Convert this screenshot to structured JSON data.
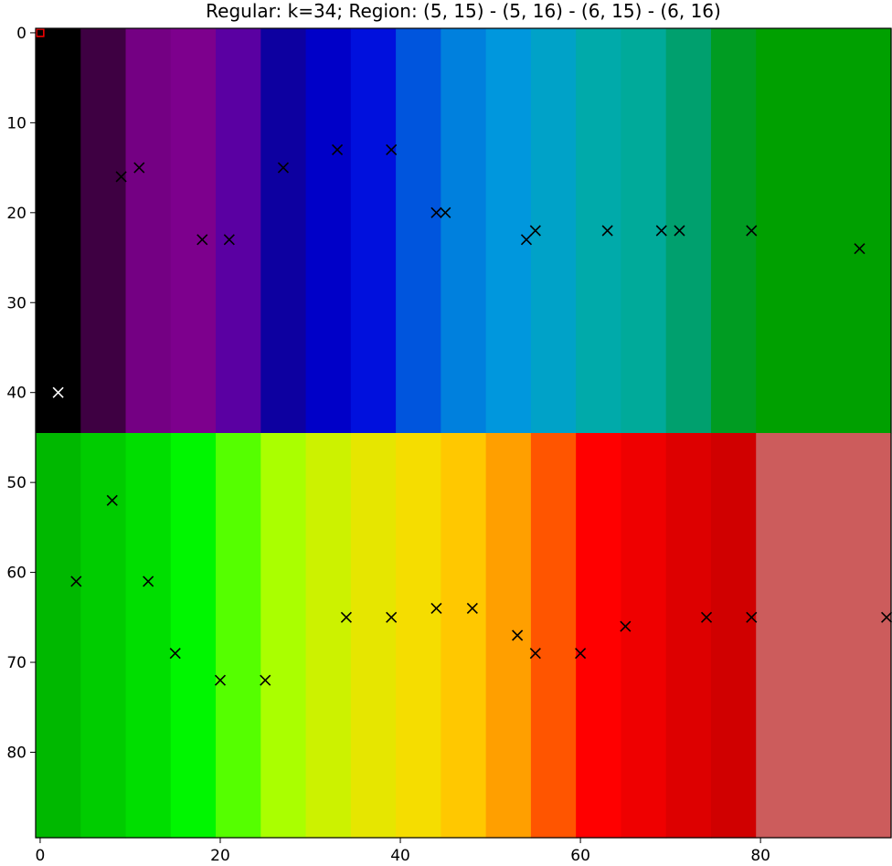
{
  "chart_data": {
    "type": "heatmap",
    "title": "Regular: k=34; Region: (5, 15) - (5, 16) - (6, 15) - (6, 16)",
    "xlim": [
      -0.5,
      94.5
    ],
    "ylim": [
      89.5,
      -0.5
    ],
    "y_inverted": true,
    "x_ticks": [
      0,
      20,
      40,
      60,
      80
    ],
    "y_ticks": [
      0,
      10,
      20,
      30,
      40,
      50,
      60,
      70,
      80
    ],
    "grid": false,
    "regions": [
      {
        "x0": -0.5,
        "x1": 4.5,
        "y0": -0.5,
        "y1": 44.5,
        "color": "#000000"
      },
      {
        "x0": 4.5,
        "x1": 9.5,
        "y0": -0.5,
        "y1": 44.5,
        "color": "#3e0042"
      },
      {
        "x0": 9.5,
        "x1": 14.5,
        "y0": -0.5,
        "y1": 44.5,
        "color": "#740083"
      },
      {
        "x0": 14.5,
        "x1": 19.5,
        "y0": -0.5,
        "y1": 44.5,
        "color": "#7d008d"
      },
      {
        "x0": 19.5,
        "x1": 24.5,
        "y0": -0.5,
        "y1": 44.5,
        "color": "#5a00a2"
      },
      {
        "x0": 24.5,
        "x1": 29.5,
        "y0": -0.5,
        "y1": 44.5,
        "color": "#0d00a0"
      },
      {
        "x0": 29.5,
        "x1": 34.5,
        "y0": -0.5,
        "y1": 44.5,
        "color": "#0000c8"
      },
      {
        "x0": 34.5,
        "x1": 39.5,
        "y0": -0.5,
        "y1": 44.5,
        "color": "#0010dd"
      },
      {
        "x0": 39.5,
        "x1": 44.5,
        "y0": -0.5,
        "y1": 44.5,
        "color": "#0055dd"
      },
      {
        "x0": 44.5,
        "x1": 49.5,
        "y0": -0.5,
        "y1": 44.5,
        "color": "#0080dd"
      },
      {
        "x0": 49.5,
        "x1": 54.5,
        "y0": -0.5,
        "y1": 44.5,
        "color": "#0097dd"
      },
      {
        "x0": 54.5,
        "x1": 59.5,
        "y0": -0.5,
        "y1": 44.5,
        "color": "#00a2c8"
      },
      {
        "x0": 59.5,
        "x1": 64.5,
        "y0": -0.5,
        "y1": 44.5,
        "color": "#00aaaa"
      },
      {
        "x0": 64.5,
        "x1": 69.5,
        "y0": -0.5,
        "y1": 44.5,
        "color": "#00aa9a"
      },
      {
        "x0": 69.5,
        "x1": 74.5,
        "y0": -0.5,
        "y1": 44.5,
        "color": "#00a06e"
      },
      {
        "x0": 74.5,
        "x1": 79.5,
        "y0": -0.5,
        "y1": 44.5,
        "color": "#009c22"
      },
      {
        "x0": 79.5,
        "x1": 94.5,
        "y0": -0.5,
        "y1": 44.5,
        "color": "#00a000"
      },
      {
        "x0": -0.5,
        "x1": 4.5,
        "y0": 44.5,
        "y1": 89.5,
        "color": "#00b800"
      },
      {
        "x0": 4.5,
        "x1": 9.5,
        "y0": 44.5,
        "y1": 89.5,
        "color": "#00cc00"
      },
      {
        "x0": 9.5,
        "x1": 14.5,
        "y0": 44.5,
        "y1": 89.5,
        "color": "#00de00"
      },
      {
        "x0": 14.5,
        "x1": 19.5,
        "y0": 44.5,
        "y1": 89.5,
        "color": "#00f600"
      },
      {
        "x0": 19.5,
        "x1": 24.5,
        "y0": 44.5,
        "y1": 89.5,
        "color": "#55ff00"
      },
      {
        "x0": 24.5,
        "x1": 29.5,
        "y0": 44.5,
        "y1": 89.5,
        "color": "#aaff00"
      },
      {
        "x0": 29.5,
        "x1": 34.5,
        "y0": 44.5,
        "y1": 89.5,
        "color": "#ccf200"
      },
      {
        "x0": 34.5,
        "x1": 39.5,
        "y0": 44.5,
        "y1": 89.5,
        "color": "#e6e600"
      },
      {
        "x0": 39.5,
        "x1": 44.5,
        "y0": 44.5,
        "y1": 89.5,
        "color": "#f5dd00"
      },
      {
        "x0": 44.5,
        "x1": 49.5,
        "y0": 44.5,
        "y1": 89.5,
        "color": "#ffc800"
      },
      {
        "x0": 49.5,
        "x1": 54.5,
        "y0": 44.5,
        "y1": 89.5,
        "color": "#ff9f00"
      },
      {
        "x0": 54.5,
        "x1": 59.5,
        "y0": 44.5,
        "y1": 89.5,
        "color": "#ff5500"
      },
      {
        "x0": 59.5,
        "x1": 64.5,
        "y0": 44.5,
        "y1": 89.5,
        "color": "#ff0000"
      },
      {
        "x0": 64.5,
        "x1": 69.5,
        "y0": 44.5,
        "y1": 89.5,
        "color": "#ef0000"
      },
      {
        "x0": 69.5,
        "x1": 74.5,
        "y0": 44.5,
        "y1": 89.5,
        "color": "#dd0000"
      },
      {
        "x0": 74.5,
        "x1": 79.5,
        "y0": 44.5,
        "y1": 89.5,
        "color": "#d00000"
      },
      {
        "x0": 79.5,
        "x1": 94.5,
        "y0": 44.5,
        "y1": 89.5,
        "color": "#cc5c5c"
      }
    ],
    "points": [
      {
        "x": 2,
        "y": 40,
        "color": "#ffffff"
      },
      {
        "x": 9,
        "y": 16,
        "color": "#000000"
      },
      {
        "x": 11,
        "y": 15,
        "color": "#000000"
      },
      {
        "x": 18,
        "y": 23,
        "color": "#000000"
      },
      {
        "x": 21,
        "y": 23,
        "color": "#000000"
      },
      {
        "x": 27,
        "y": 15,
        "color": "#000000"
      },
      {
        "x": 33,
        "y": 13,
        "color": "#000000"
      },
      {
        "x": 39,
        "y": 13,
        "color": "#000000"
      },
      {
        "x": 44,
        "y": 20,
        "color": "#000000"
      },
      {
        "x": 45,
        "y": 20,
        "color": "#000000"
      },
      {
        "x": 54,
        "y": 23,
        "color": "#000000"
      },
      {
        "x": 55,
        "y": 22,
        "color": "#000000"
      },
      {
        "x": 63,
        "y": 22,
        "color": "#000000"
      },
      {
        "x": 69,
        "y": 22,
        "color": "#000000"
      },
      {
        "x": 71,
        "y": 22,
        "color": "#000000"
      },
      {
        "x": 79,
        "y": 22,
        "color": "#000000"
      },
      {
        "x": 91,
        "y": 24,
        "color": "#000000"
      },
      {
        "x": 4,
        "y": 61,
        "color": "#000000"
      },
      {
        "x": 8,
        "y": 52,
        "color": "#000000"
      },
      {
        "x": 12,
        "y": 61,
        "color": "#000000"
      },
      {
        "x": 15,
        "y": 69,
        "color": "#000000"
      },
      {
        "x": 20,
        "y": 72,
        "color": "#000000"
      },
      {
        "x": 25,
        "y": 72,
        "color": "#000000"
      },
      {
        "x": 34,
        "y": 65,
        "color": "#000000"
      },
      {
        "x": 39,
        "y": 65,
        "color": "#000000"
      },
      {
        "x": 44,
        "y": 64,
        "color": "#000000"
      },
      {
        "x": 48,
        "y": 64,
        "color": "#000000"
      },
      {
        "x": 53,
        "y": 67,
        "color": "#000000"
      },
      {
        "x": 55,
        "y": 69,
        "color": "#000000"
      },
      {
        "x": 60,
        "y": 69,
        "color": "#000000"
      },
      {
        "x": 65,
        "y": 66,
        "color": "#000000"
      },
      {
        "x": 74,
        "y": 65,
        "color": "#000000"
      },
      {
        "x": 79,
        "y": 65,
        "color": "#000000"
      },
      {
        "x": 94,
        "y": 65,
        "color": "#000000"
      }
    ],
    "highlight_region": {
      "x0": -0.5,
      "x1": 0.5,
      "y0": -0.5,
      "y1": 0.5,
      "color": "#ff0000"
    }
  }
}
